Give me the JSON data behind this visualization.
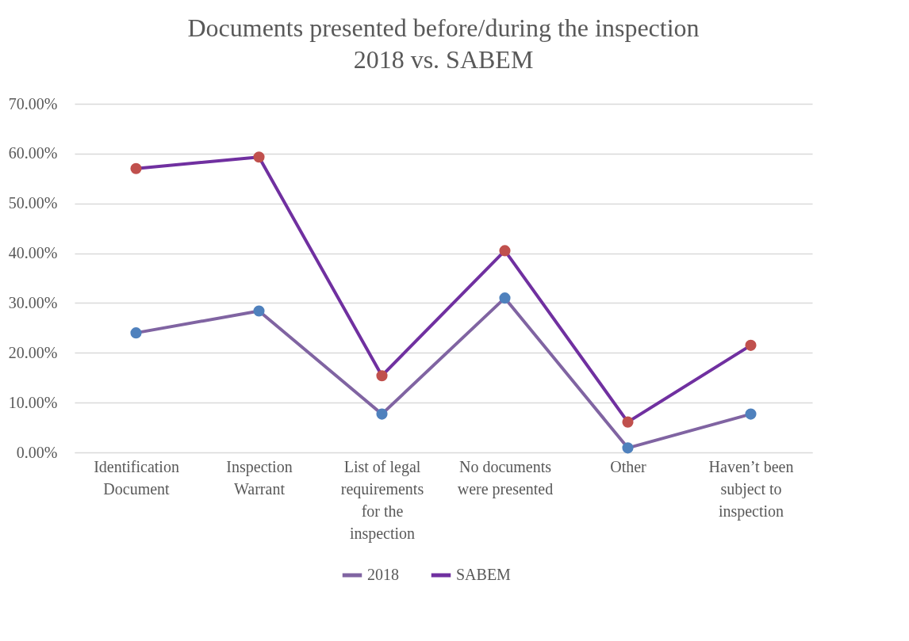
{
  "chart_data": {
    "type": "line",
    "title": [
      "Documents presented before/during the inspection",
      "2018 vs. SABEM"
    ],
    "categories": [
      "Identification Document",
      "Inspection Warrant",
      "List of legal requirements for the inspection",
      "No documents were presented",
      "Other",
      "Haven’t been subject to inspection"
    ],
    "series": [
      {
        "name": "2018",
        "color": "#8064a2",
        "colors": [
          "#4f81bd",
          "#4f81bd",
          "#4f81bd",
          "#4f81bd",
          "#4f81bd",
          "#4f81bd"
        ],
        "values": [
          24.0,
          28.4,
          7.7,
          31.0,
          0.9,
          7.7
        ]
      },
      {
        "name": "SABEM",
        "color": "#7030a0",
        "colors": [
          "#c0504d",
          "#c0504d",
          "#c0504d",
          "#c0504d",
          "#c0504d",
          "#c0504d"
        ],
        "values": [
          57.0,
          59.3,
          15.4,
          40.5,
          6.1,
          21.5
        ]
      }
    ],
    "ylim": [
      0,
      70
    ],
    "yticks": [
      {
        "value": 0,
        "label": "0.00%"
      },
      {
        "value": 10,
        "label": "10.00%"
      },
      {
        "value": 20,
        "label": "20.00%"
      },
      {
        "value": 30,
        "label": "30.00%"
      },
      {
        "value": 40,
        "label": "40.00%"
      },
      {
        "value": 50,
        "label": "50.00%"
      },
      {
        "value": 60,
        "label": "60.00%"
      },
      {
        "value": 70,
        "label": "70.00%"
      }
    ],
    "grid": "y",
    "legend": "bottom",
    "marker": "circle",
    "line_style": "solid"
  }
}
